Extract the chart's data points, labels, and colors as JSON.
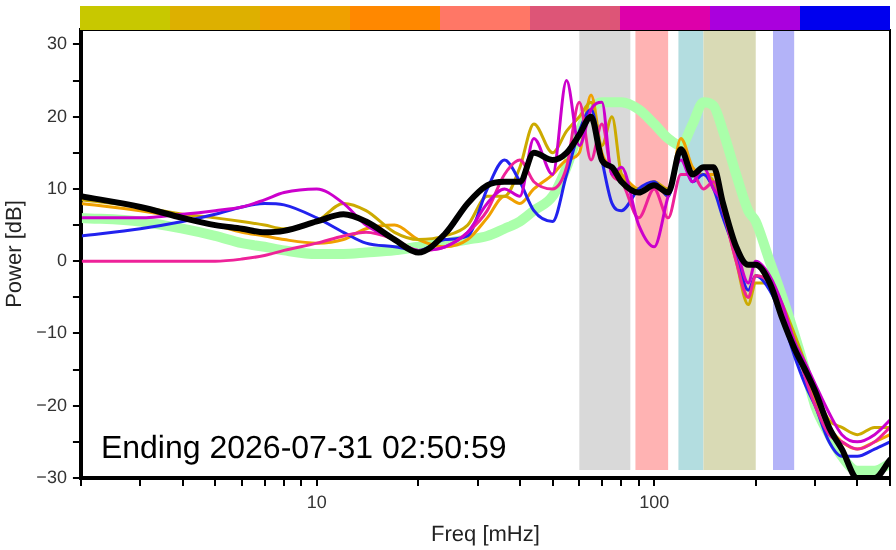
{
  "chart_data": {
    "type": "line",
    "xlabel": "Freq [mHz]",
    "ylabel": "Power [dB]",
    "log": "x",
    "grid": false,
    "legend": false,
    "marker": "none",
    "xlim": [
      2,
      500
    ],
    "ylim": [
      -30,
      32
    ],
    "xticks": [
      {
        "value": 2,
        "label": null
      },
      {
        "value": 3,
        "label": null
      },
      {
        "value": 4,
        "label": null
      },
      {
        "value": 5,
        "label": null
      },
      {
        "value": 6,
        "label": null
      },
      {
        "value": 7,
        "label": null
      },
      {
        "value": 8,
        "label": null
      },
      {
        "value": 9,
        "label": null
      },
      10,
      {
        "value": 20,
        "label": null
      },
      {
        "value": 30,
        "label": null
      },
      {
        "value": 40,
        "label": null
      },
      {
        "value": 50,
        "label": null
      },
      {
        "value": 60,
        "label": null
      },
      {
        "value": 70,
        "label": null
      },
      {
        "value": 80,
        "label": null
      },
      {
        "value": 90,
        "label": null
      },
      100,
      {
        "value": 200,
        "label": null
      },
      {
        "value": 300,
        "label": null
      },
      {
        "value": 400,
        "label": null
      },
      {
        "value": 500,
        "label": null
      }
    ],
    "yticks": [
      -30,
      {
        "value": -25,
        "label": null
      },
      -20,
      {
        "value": -15,
        "label": null
      },
      -10,
      {
        "value": -5,
        "label": null
      },
      0,
      {
        "value": 5,
        "label": null
      },
      10,
      {
        "value": 15,
        "label": null
      },
      20,
      {
        "value": 25,
        "label": null
      },
      30
    ],
    "x": [
      2,
      3,
      4,
      5,
      6,
      7,
      8,
      10,
      12,
      14,
      17,
      20,
      24,
      28,
      32,
      36,
      40,
      44,
      50,
      55,
      60,
      65,
      70,
      75,
      80,
      90,
      100,
      110,
      120,
      130,
      140,
      150,
      160,
      175,
      190,
      200,
      220,
      240,
      260,
      280,
      300,
      330,
      360,
      400,
      450,
      500
    ],
    "series": [
      {
        "color": "#000000",
        "values": [
          9,
          7.5,
          6,
          5,
          4.5,
          4,
          4.2,
          5.5,
          6.5,
          5.5,
          3,
          1.2,
          3.8,
          8,
          10.5,
          11,
          11,
          15,
          14,
          15,
          17.5,
          20,
          14,
          13,
          11,
          9.5,
          10.5,
          9.5,
          15.5,
          12,
          13,
          13,
          8,
          2,
          -0.5,
          -0.5,
          -3,
          -8,
          -12,
          -15,
          -18,
          -23,
          -26,
          -30,
          -30,
          -27.5
        ]
      },
      {
        "color": "#cc00cc",
        "values": [
          6,
          6,
          6.5,
          7,
          7.5,
          8.5,
          9.5,
          10,
          8,
          5,
          3,
          1.5,
          2,
          4,
          8,
          10,
          9,
          17,
          12,
          25,
          16,
          21,
          22,
          12,
          13,
          5,
          2,
          9,
          14,
          11,
          13,
          10,
          8,
          2,
          -3,
          0,
          -2,
          -6,
          -11,
          -14,
          -17,
          -21,
          -24,
          -25,
          -24,
          -22
        ]
      },
      {
        "color": "#ee2299",
        "values": [
          0,
          0,
          0,
          0,
          0.3,
          0.8,
          1.5,
          2.5,
          3.5,
          4,
          3,
          1.5,
          2,
          4,
          7,
          12,
          14,
          11,
          10,
          13,
          22,
          14,
          19,
          12,
          11,
          6,
          10,
          6,
          12,
          12,
          10,
          11,
          7,
          0,
          -5,
          -2,
          -3,
          -7,
          -11,
          -16,
          -20,
          -24,
          -25,
          -26,
          -25,
          -23
        ]
      },
      {
        "color": "#2222ee",
        "values": [
          3.5,
          4.5,
          5.5,
          6.5,
          7.5,
          8,
          7.8,
          6,
          4,
          2.5,
          2,
          1.5,
          3,
          3.5,
          10,
          14,
          11,
          7,
          5.5,
          12,
          18,
          21,
          14,
          8,
          7,
          10,
          11,
          9,
          15,
          11,
          12,
          10,
          6,
          1,
          -4,
          -2,
          -4,
          -8,
          -13,
          -17,
          -20,
          -25,
          -27,
          -27,
          -26,
          -25
        ]
      },
      {
        "color": "#ccaa00",
        "values": [
          8.5,
          7.5,
          6.5,
          6,
          5.5,
          5,
          4.5,
          5.5,
          8,
          7,
          4,
          3,
          3.5,
          5,
          9,
          9,
          13,
          19,
          15,
          18,
          20,
          22,
          16,
          20,
          12,
          10,
          11,
          10,
          15,
          12,
          12,
          11,
          7,
          0,
          -6,
          -3,
          -3,
          -6,
          -10,
          -14,
          -18,
          -22,
          -23,
          -24,
          -23,
          -23
        ]
      },
      {
        "color": "#f0a000",
        "values": [
          8,
          7,
          6,
          5,
          4,
          3.5,
          3,
          2.5,
          3,
          4.5,
          5,
          3,
          2,
          3,
          6,
          9,
          8,
          10,
          12,
          14,
          15,
          23,
          15,
          13,
          12,
          10,
          11,
          9,
          17,
          13,
          12,
          12,
          8,
          1,
          -5,
          -2,
          -3,
          -7,
          -11,
          -15,
          -19,
          -23,
          -25,
          -26,
          -25,
          -24
        ]
      },
      {
        "color": "#aaffaa",
        "values": [
          6,
          5.5,
          4.5,
          3.5,
          2.5,
          2,
          1.5,
          1,
          1,
          1.2,
          1.5,
          2,
          2.5,
          3,
          3.5,
          4.5,
          5.5,
          7,
          9,
          13,
          18,
          21,
          22,
          22,
          22,
          21,
          19,
          17,
          16,
          19,
          22,
          21.5,
          18,
          12,
          7,
          5.5,
          0,
          -5,
          -10,
          -15,
          -20,
          -24,
          -27,
          -29,
          -29,
          -28
        ]
      }
    ],
    "bands": [
      {
        "axis": "x",
        "from": 60,
        "to": 85,
        "color": "#d9d9d9"
      },
      {
        "axis": "x",
        "from": 88,
        "to": 110,
        "color": "#ffb3b3"
      },
      {
        "axis": "x",
        "from": 118,
        "to": 140,
        "color": "#b3dde0"
      },
      {
        "axis": "x",
        "from": 140,
        "to": 200,
        "color": "#d9dab5"
      },
      {
        "axis": "x",
        "from": 225,
        "to": 260,
        "color": "#b3b3f8"
      }
    ],
    "annotations": [
      "Ending 2026-07-31 02:50:59"
    ]
  }
}
